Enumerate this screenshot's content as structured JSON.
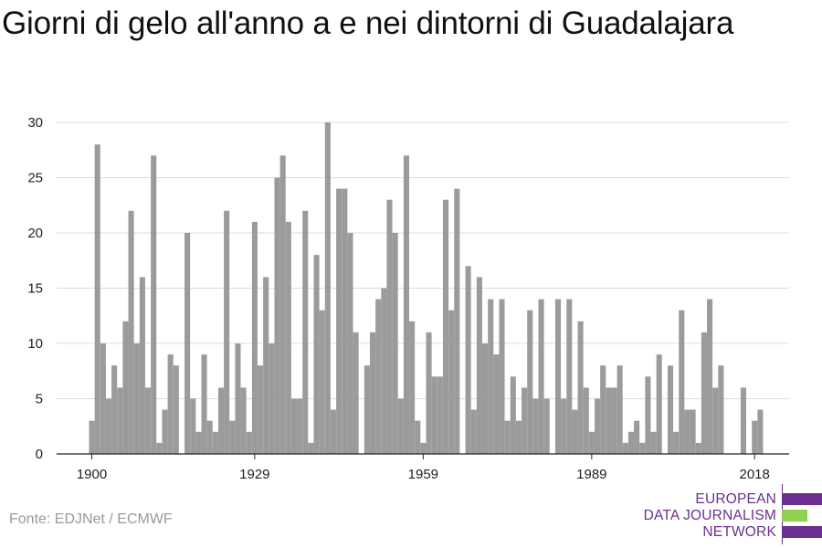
{
  "header": {
    "title": "Giorni di gelo all'anno a e nei dintorni di Guadalajara"
  },
  "footer": {
    "source": "Fonte: EDJNet / ECMWF",
    "logo": {
      "line1": "EUROPEAN",
      "line2": "DATA JOURNALISM",
      "line3": "NETWORK",
      "bar_colors": [
        "#6b2f8f",
        "#8fd14f",
        "#6b2f8f"
      ]
    }
  },
  "colors": {
    "bar": "#9b9b9b",
    "grid": "#dcdcdc",
    "axis": "#222222"
  },
  "chart_data": {
    "type": "bar",
    "title": "Giorni di gelo all'anno a e nei dintorni di Guadalajara",
    "xlabel": "",
    "ylabel": "",
    "x_start": 1900,
    "xticks": [
      1900,
      1929,
      1959,
      1989,
      2018
    ],
    "yticks": [
      0,
      5,
      10,
      15,
      20,
      25,
      30
    ],
    "ylim": [
      0,
      30
    ],
    "grid": true,
    "values": [
      3,
      28,
      10,
      5,
      8,
      6,
      12,
      22,
      10,
      16,
      6,
      27,
      1,
      4,
      9,
      8,
      0,
      20,
      5,
      2,
      9,
      3,
      2,
      6,
      22,
      3,
      10,
      6,
      2,
      21,
      8,
      16,
      10,
      25,
      27,
      21,
      5,
      5,
      22,
      1,
      18,
      13,
      30,
      4,
      24,
      24,
      20,
      11,
      0,
      8,
      11,
      14,
      15,
      23,
      20,
      5,
      27,
      12,
      3,
      1,
      11,
      7,
      7,
      23,
      13,
      24,
      0,
      17,
      4,
      16,
      10,
      14,
      9,
      14,
      3,
      7,
      3,
      6,
      13,
      5,
      14,
      5,
      0,
      14,
      5,
      14,
      4,
      12,
      6,
      2,
      5,
      8,
      6,
      6,
      8,
      1,
      2,
      3,
      1,
      7,
      2,
      9,
      0,
      8,
      2,
      13,
      4,
      4,
      1,
      11,
      14,
      6,
      8,
      0,
      0,
      0,
      6,
      0,
      3,
      4
    ]
  }
}
